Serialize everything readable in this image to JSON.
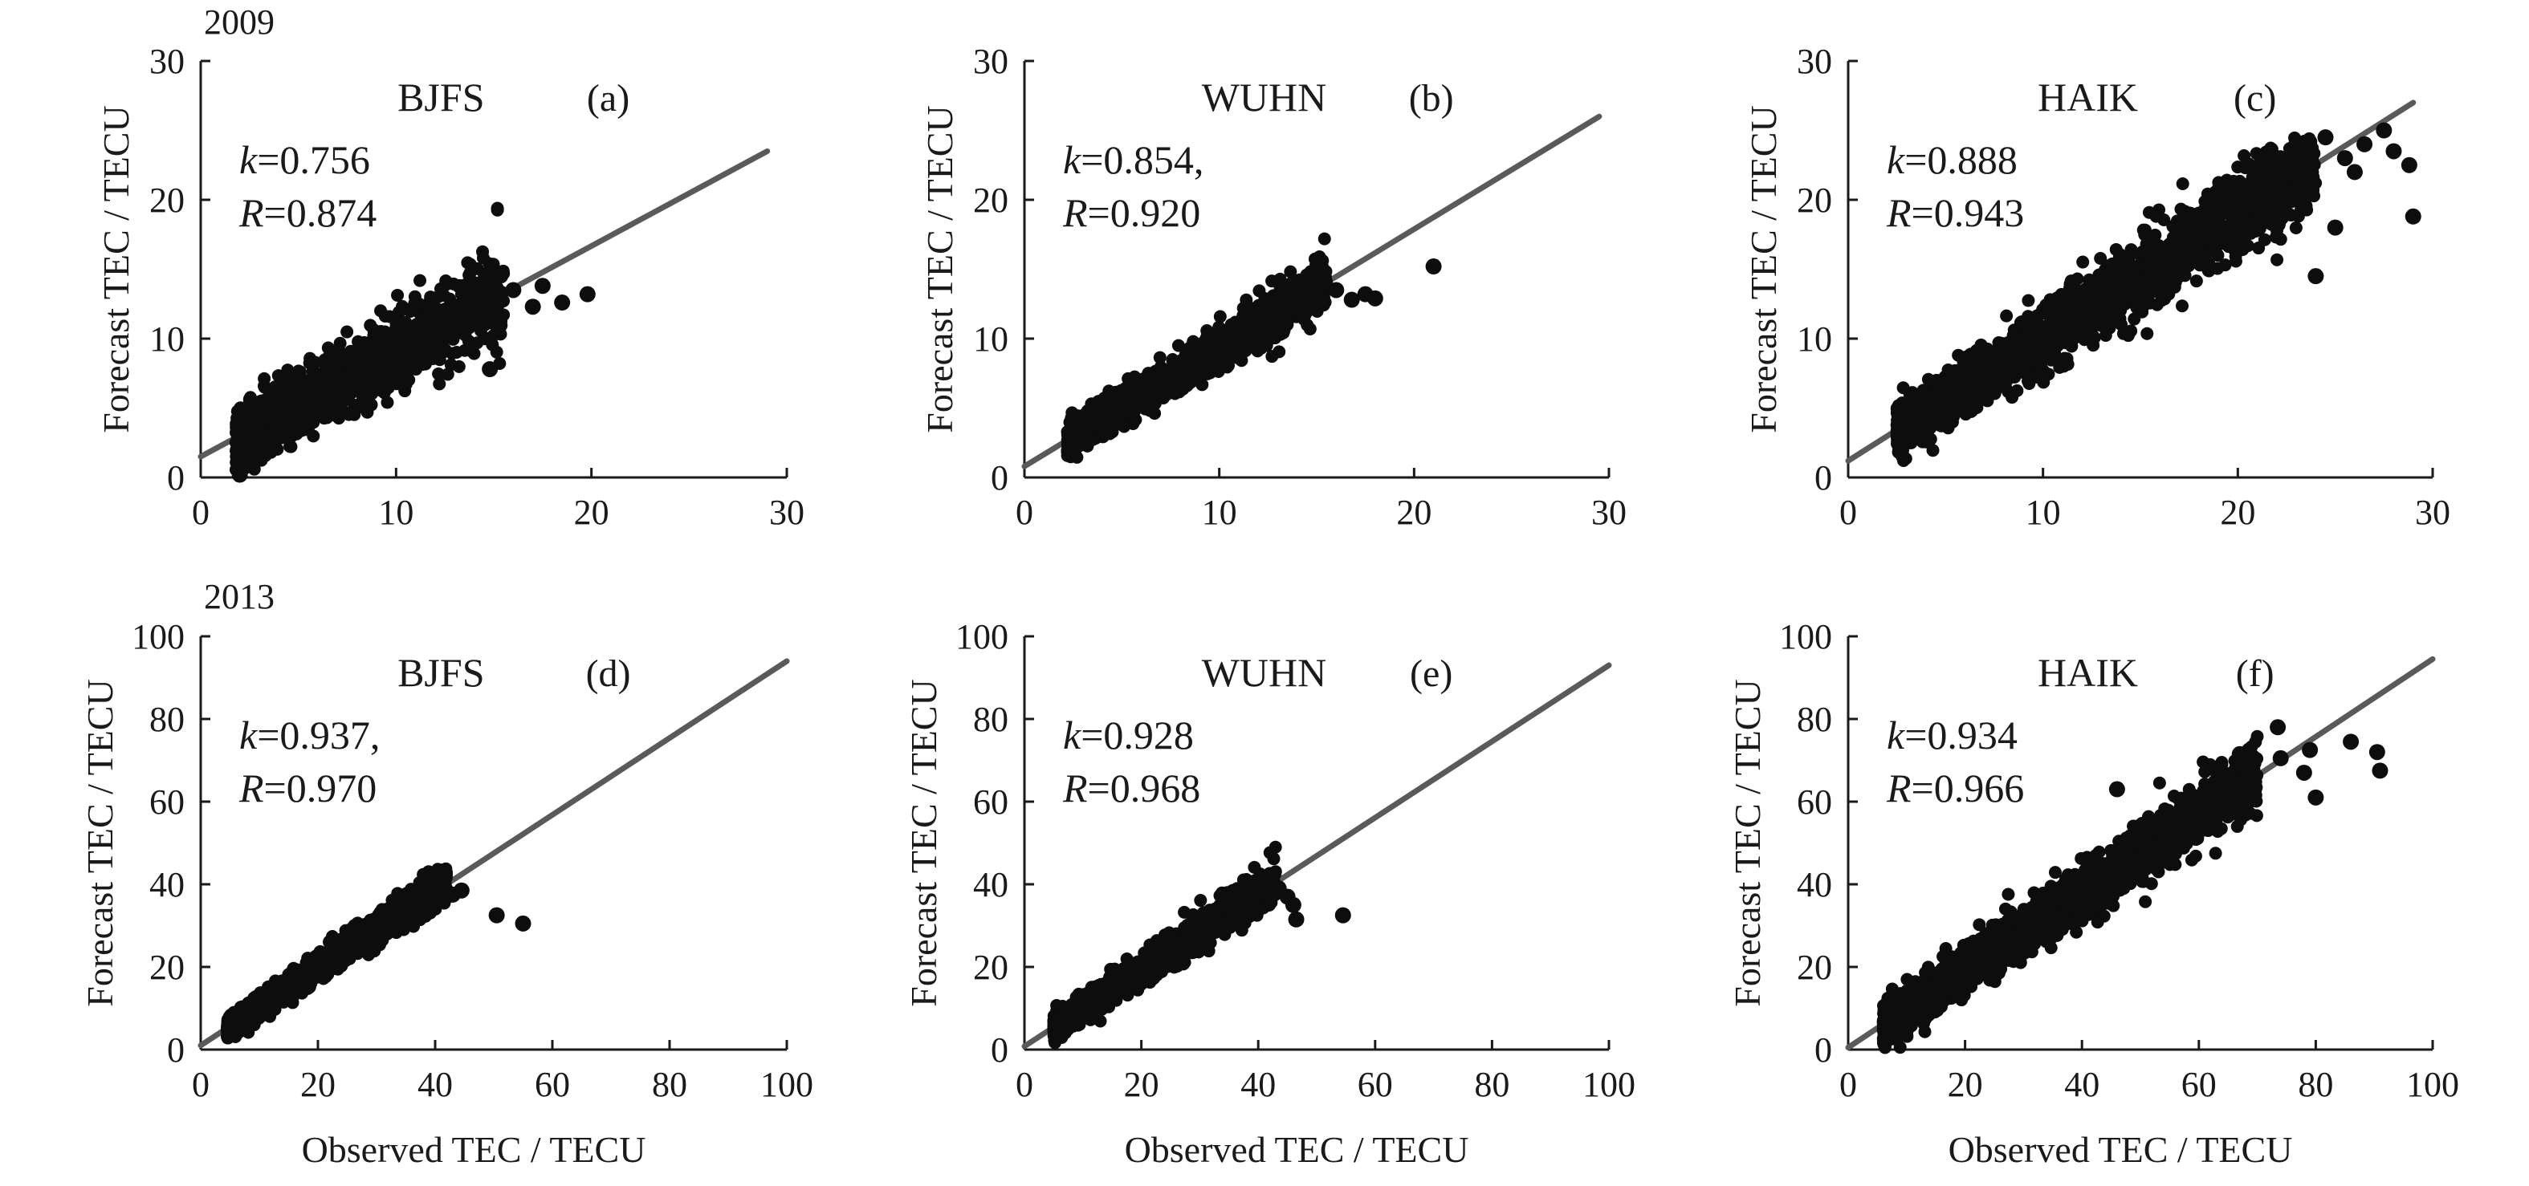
{
  "figure": {
    "year_labels": [
      "2009",
      "2013"
    ],
    "colors": {
      "points": "#0d0d0d",
      "fit_line": "#5a5a5a",
      "axes": "#1a1a1a"
    }
  },
  "chart_data": [
    {
      "type": "scatter",
      "panel": "(a)",
      "title": "BJFS",
      "year": "2009",
      "xlabel": "",
      "ylabel": "Forecast TEC / TECU",
      "xlim": [
        0,
        30
      ],
      "ylim": [
        0,
        30
      ],
      "xticks": [
        0,
        10,
        20,
        30
      ],
      "yticks": [
        0,
        10,
        20,
        30
      ],
      "stats": [
        "k = 0.756",
        "R = 0.874"
      ],
      "fit_line": {
        "x": [
          0,
          29
        ],
        "y": [
          1.5,
          23.5
        ]
      },
      "cloud": {
        "x_range": [
          1.8,
          15.5
        ],
        "slope": 0.756,
        "intercept": 1.5,
        "spread": 1.7,
        "n": 1400
      },
      "outliers": [
        [
          15,
          12.5
        ],
        [
          16,
          13.5
        ],
        [
          17,
          12.3
        ],
        [
          17.5,
          13.8
        ],
        [
          18.5,
          12.6
        ],
        [
          19.8,
          13.2
        ],
        [
          14.8,
          7.8
        ],
        [
          2,
          0.2
        ]
      ]
    },
    {
      "type": "scatter",
      "panel": "(b)",
      "title": "WUHN",
      "year": "2009",
      "xlabel": "",
      "ylabel": "Forecast TEC / TECU",
      "xlim": [
        0,
        30
      ],
      "ylim": [
        0,
        30
      ],
      "xticks": [
        0,
        10,
        20,
        30
      ],
      "yticks": [
        0,
        10,
        20,
        30
      ],
      "stats": [
        "k = 0.854,",
        "R = 0.920"
      ],
      "fit_line": {
        "x": [
          0,
          29.5
        ],
        "y": [
          0.8,
          26
        ]
      },
      "cloud": {
        "x_range": [
          2.2,
          15.5
        ],
        "slope": 0.854,
        "intercept": 0.8,
        "spread": 1.0,
        "n": 1300
      },
      "outliers": [
        [
          16,
          13.5
        ],
        [
          16.8,
          12.8
        ],
        [
          17.5,
          13.2
        ],
        [
          18,
          12.9
        ],
        [
          21,
          15.2
        ],
        [
          15,
          14.3
        ]
      ]
    },
    {
      "type": "scatter",
      "panel": "(c)",
      "title": "HAIK",
      "year": "2009",
      "xlabel": "",
      "ylabel": "Forecast TEC / TECU",
      "xlim": [
        0,
        30
      ],
      "ylim": [
        0,
        30
      ],
      "xticks": [
        0,
        10,
        20,
        30
      ],
      "yticks": [
        0,
        10,
        20,
        30
      ],
      "stats": [
        "k = 0.888",
        "R = 0.943"
      ],
      "fit_line": {
        "x": [
          0,
          29
        ],
        "y": [
          1.2,
          27
        ]
      },
      "cloud": {
        "x_range": [
          2.5,
          24
        ],
        "slope": 0.888,
        "intercept": 1.2,
        "spread": 1.6,
        "n": 2000
      },
      "outliers": [
        [
          24.5,
          24.5
        ],
        [
          25.5,
          23
        ],
        [
          26,
          22
        ],
        [
          26.5,
          24
        ],
        [
          27.5,
          25
        ],
        [
          28,
          23.5
        ],
        [
          28.8,
          22.5
        ],
        [
          29,
          18.8
        ],
        [
          25,
          18
        ],
        [
          24,
          14.5
        ],
        [
          20.5,
          22.5
        ],
        [
          21,
          22.3
        ],
        [
          23,
          24
        ]
      ]
    },
    {
      "type": "scatter",
      "panel": "(d)",
      "title": "BJFS",
      "year": "2013",
      "xlabel": "Observed TEC / TECU",
      "ylabel": "Forecast TEC / TECU",
      "xlim": [
        0,
        100
      ],
      "ylim": [
        0,
        100
      ],
      "xticks": [
        0,
        20,
        40,
        60,
        80,
        100
      ],
      "yticks": [
        0,
        20,
        40,
        60,
        80,
        100
      ],
      "stats": [
        "k = 0.937,",
        "R = 0.970"
      ],
      "fit_line": {
        "x": [
          0,
          100
        ],
        "y": [
          1,
          94
        ]
      },
      "cloud": {
        "x_range": [
          4.5,
          42
        ],
        "slope": 0.937,
        "intercept": 1,
        "spread": 2.2,
        "n": 1500
      },
      "outliers": [
        [
          41,
          39
        ],
        [
          43,
          37.5
        ],
        [
          44.5,
          38.5
        ],
        [
          50.5,
          32.5
        ],
        [
          55,
          30.5
        ]
      ]
    },
    {
      "type": "scatter",
      "panel": "(e)",
      "title": "WUHN",
      "year": "2013",
      "xlabel": "Observed TEC / TECU",
      "ylabel": "Forecast TEC / TECU",
      "xlim": [
        0,
        100
      ],
      "ylim": [
        0,
        100
      ],
      "xticks": [
        0,
        20,
        40,
        60,
        80,
        100
      ],
      "yticks": [
        0,
        20,
        40,
        60,
        80,
        100
      ],
      "stats": [
        "k = 0.928",
        "R = 0.968"
      ],
      "fit_line": {
        "x": [
          0,
          100
        ],
        "y": [
          0.8,
          93
        ]
      },
      "cloud": {
        "x_range": [
          5,
          43
        ],
        "slope": 0.928,
        "intercept": 0.8,
        "spread": 2.5,
        "n": 1500
      },
      "outliers": [
        [
          42,
          40.5
        ],
        [
          43.5,
          39
        ],
        [
          45,
          37
        ],
        [
          46,
          35
        ],
        [
          46.5,
          31.5
        ],
        [
          54.5,
          32.5
        ]
      ]
    },
    {
      "type": "scatter",
      "panel": "(f)",
      "title": "HAIK",
      "year": "2013",
      "xlabel": "Observed TEC / TECU",
      "ylabel": "Forecast TEC / TECU",
      "xlim": [
        0,
        100
      ],
      "ylim": [
        0,
        100
      ],
      "xticks": [
        0,
        20,
        40,
        60,
        80,
        100
      ],
      "yticks": [
        0,
        20,
        40,
        60,
        80,
        100
      ],
      "stats": [
        "k = 0.934",
        "R = 0.966"
      ],
      "fit_line": {
        "x": [
          0,
          100
        ],
        "y": [
          0.5,
          94.5
        ]
      },
      "cloud": {
        "x_range": [
          6,
          70
        ],
        "slope": 0.934,
        "intercept": 0.5,
        "spread": 4.2,
        "n": 2200
      },
      "outliers": [
        [
          73.5,
          78
        ],
        [
          74,
          70.5
        ],
        [
          78,
          67
        ],
        [
          80,
          61
        ],
        [
          86,
          74.5
        ],
        [
          90.5,
          72
        ],
        [
          91,
          67.5
        ],
        [
          79,
          72.5
        ],
        [
          67,
          71.5
        ],
        [
          46,
          63
        ]
      ]
    }
  ]
}
